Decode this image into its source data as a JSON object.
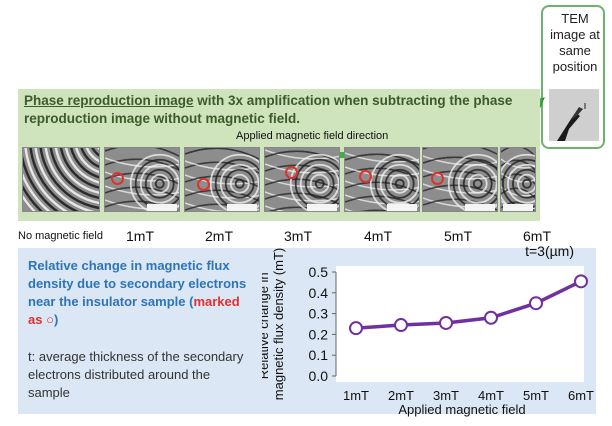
{
  "tem": {
    "label": "TEM image at same position"
  },
  "top": {
    "title_underlined": "Phase reproduction image",
    "title_rest": " with 3x amplification when subtracting the phase reproduction image without magnetic field.",
    "field_direction": "Applied magnetic field direction",
    "no_field_label": "No magnetic field",
    "tile_labels": [
      "1mT",
      "2mT",
      "3mT",
      "4mT",
      "5mT",
      "6mT"
    ],
    "colors": {
      "panel": "#cfe3bd",
      "arrow": "#3cb043"
    }
  },
  "bottom": {
    "relative_text": "Relative change in magnetic flux density due to secondary electrons near the insulator sample (",
    "marked_text": "marked as ○",
    "relative_close": ")",
    "avg_text": "t: average thickness of the secondary electrons distributed around the sample",
    "colors": {
      "panel": "#dbe7f4",
      "heading": "#2e75b6",
      "marker": "#e03030"
    }
  },
  "chart_data": {
    "type": "line",
    "title": "t=3(µm)",
    "xlabel": "Applied magnetic field",
    "ylabel": "Relative change in magnetic flux density (mT)",
    "categories": [
      "1mT",
      "2mT",
      "3mT",
      "4mT",
      "5mT",
      "6mT"
    ],
    "values": [
      0.23,
      0.245,
      0.255,
      0.28,
      0.35,
      0.455
    ],
    "yticks": [
      "0.0",
      "0.1",
      "0.2",
      "0.3",
      "0.4",
      "0.5"
    ],
    "ylim": [
      0,
      0.5
    ],
    "color": "#7030a0"
  }
}
